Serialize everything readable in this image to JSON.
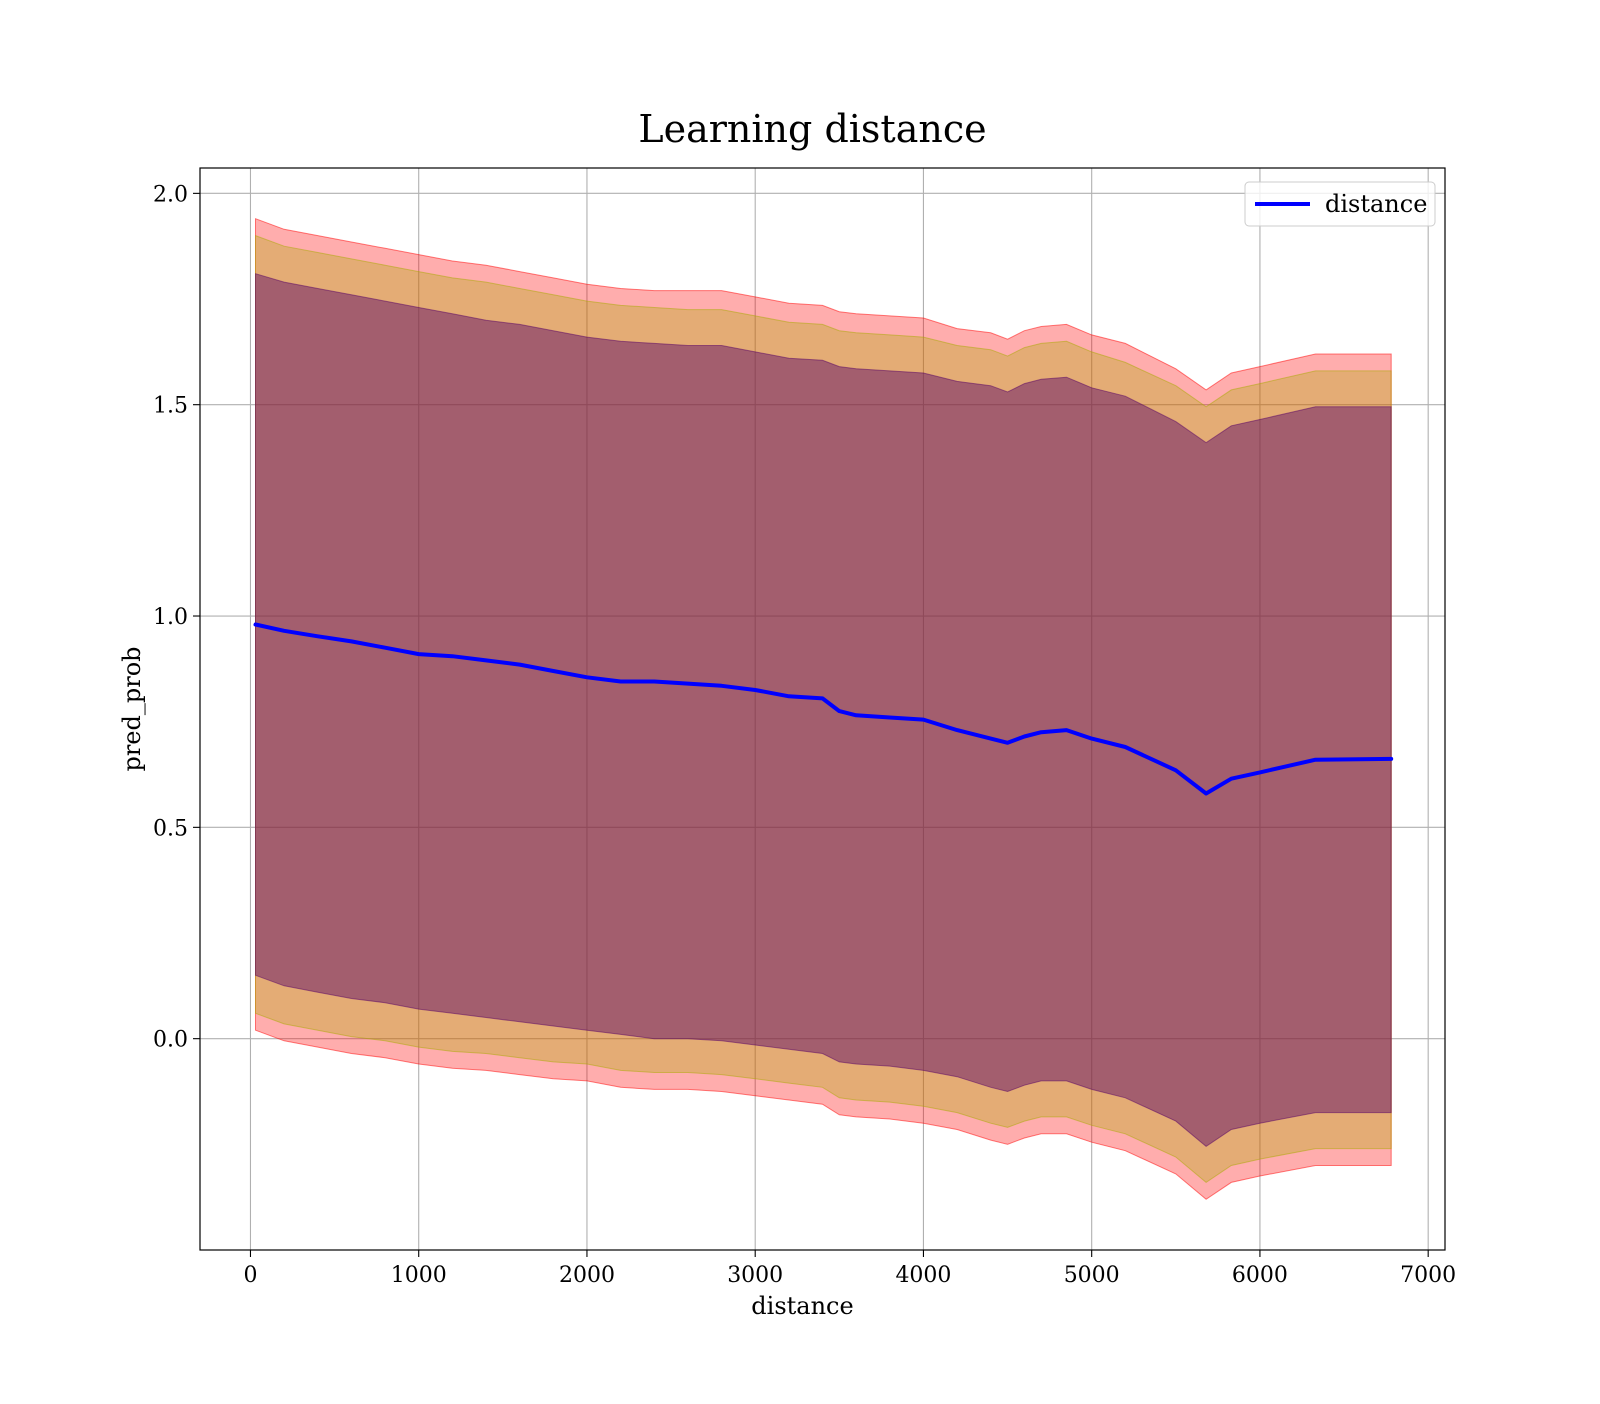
{
  "colors": {
    "line": "#0000ff",
    "band_outer": "#ff0000",
    "band_middle": "#aaaa00",
    "band_inner": "#550066",
    "grid": "#b0b0b0"
  },
  "chart_data": {
    "type": "line",
    "title": "Learning distance",
    "xlabel": "distance",
    "ylabel": "pred_prob",
    "xlim": [
      -300,
      7100
    ],
    "ylim": [
      -0.5,
      2.06
    ],
    "xticks": [
      0,
      1000,
      2000,
      3000,
      4000,
      5000,
      6000,
      7000
    ],
    "xtick_labels": [
      "0",
      "1000",
      "2000",
      "3000",
      "4000",
      "5000",
      "6000",
      "7000"
    ],
    "yticks": [
      0.0,
      0.5,
      1.0,
      1.5,
      2.0
    ],
    "ytick_labels": [
      "0.0",
      "0.5",
      "1.0",
      "1.5",
      "2.0"
    ],
    "grid": true,
    "legend": {
      "position": "top-right",
      "entries": [
        "distance"
      ]
    },
    "x": [
      30,
      200,
      400,
      600,
      800,
      1000,
      1200,
      1400,
      1600,
      1800,
      2000,
      2200,
      2400,
      2600,
      2800,
      3000,
      3200,
      3400,
      3500,
      3600,
      3800,
      4000,
      4200,
      4400,
      4500,
      4600,
      4700,
      4850,
      5000,
      5200,
      5500,
      5680,
      5830,
      6000,
      6330,
      6780
    ],
    "series": [
      {
        "name": "distance",
        "values": [
          0.98,
          0.965,
          0.952,
          0.94,
          0.925,
          0.91,
          0.905,
          0.895,
          0.885,
          0.87,
          0.855,
          0.845,
          0.845,
          0.84,
          0.835,
          0.825,
          0.81,
          0.805,
          0.775,
          0.765,
          0.76,
          0.755,
          0.73,
          0.71,
          0.7,
          0.715,
          0.725,
          0.73,
          0.71,
          0.69,
          0.635,
          0.58,
          0.615,
          0.63,
          0.66,
          0.662
        ]
      }
    ],
    "bands": [
      {
        "name": "outer",
        "upper": [
          1.94,
          1.915,
          1.9,
          1.885,
          1.87,
          1.855,
          1.84,
          1.83,
          1.815,
          1.8,
          1.785,
          1.775,
          1.77,
          1.77,
          1.77,
          1.755,
          1.74,
          1.735,
          1.72,
          1.715,
          1.71,
          1.705,
          1.68,
          1.67,
          1.655,
          1.675,
          1.685,
          1.69,
          1.665,
          1.645,
          1.585,
          1.535,
          1.575,
          1.59,
          1.62,
          1.62
        ],
        "lower": [
          0.02,
          -0.005,
          -0.02,
          -0.035,
          -0.045,
          -0.06,
          -0.07,
          -0.075,
          -0.085,
          -0.095,
          -0.1,
          -0.115,
          -0.12,
          -0.12,
          -0.125,
          -0.135,
          -0.145,
          -0.155,
          -0.18,
          -0.185,
          -0.19,
          -0.2,
          -0.215,
          -0.24,
          -0.25,
          -0.235,
          -0.225,
          -0.225,
          -0.245,
          -0.265,
          -0.32,
          -0.38,
          -0.34,
          -0.325,
          -0.3,
          -0.3
        ]
      },
      {
        "name": "middle",
        "upper": [
          1.9,
          1.875,
          1.86,
          1.845,
          1.83,
          1.815,
          1.8,
          1.79,
          1.775,
          1.76,
          1.745,
          1.735,
          1.73,
          1.725,
          1.725,
          1.71,
          1.695,
          1.69,
          1.675,
          1.67,
          1.665,
          1.66,
          1.64,
          1.63,
          1.615,
          1.635,
          1.645,
          1.65,
          1.625,
          1.6,
          1.545,
          1.495,
          1.535,
          1.55,
          1.58,
          1.58
        ],
        "lower": [
          0.06,
          0.035,
          0.02,
          0.005,
          -0.005,
          -0.02,
          -0.03,
          -0.035,
          -0.045,
          -0.055,
          -0.06,
          -0.075,
          -0.08,
          -0.08,
          -0.085,
          -0.095,
          -0.105,
          -0.115,
          -0.14,
          -0.145,
          -0.15,
          -0.16,
          -0.175,
          -0.2,
          -0.21,
          -0.195,
          -0.185,
          -0.185,
          -0.205,
          -0.225,
          -0.28,
          -0.34,
          -0.3,
          -0.285,
          -0.26,
          -0.26
        ]
      },
      {
        "name": "inner",
        "upper": [
          1.81,
          1.79,
          1.775,
          1.76,
          1.745,
          1.73,
          1.715,
          1.7,
          1.69,
          1.675,
          1.66,
          1.65,
          1.645,
          1.64,
          1.64,
          1.625,
          1.61,
          1.605,
          1.59,
          1.585,
          1.58,
          1.575,
          1.555,
          1.545,
          1.53,
          1.55,
          1.56,
          1.565,
          1.54,
          1.52,
          1.46,
          1.41,
          1.45,
          1.465,
          1.495,
          1.495
        ],
        "lower": [
          0.15,
          0.125,
          0.11,
          0.095,
          0.085,
          0.07,
          0.06,
          0.05,
          0.04,
          0.03,
          0.02,
          0.01,
          0.0,
          0.0,
          -0.005,
          -0.015,
          -0.025,
          -0.035,
          -0.055,
          -0.06,
          -0.065,
          -0.075,
          -0.09,
          -0.115,
          -0.125,
          -0.11,
          -0.1,
          -0.1,
          -0.12,
          -0.14,
          -0.195,
          -0.255,
          -0.215,
          -0.2,
          -0.175,
          -0.175
        ]
      }
    ]
  }
}
